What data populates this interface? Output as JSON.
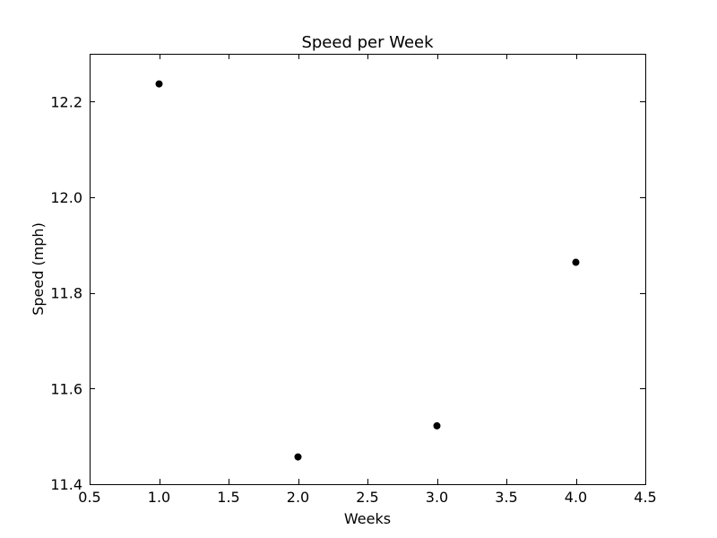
{
  "chart_data": {
    "type": "scatter",
    "title": "Speed per Week",
    "xlabel": "Weeks",
    "ylabel": "Speed (mph)",
    "xlim": [
      0.5,
      4.5
    ],
    "ylim": [
      11.4,
      12.3
    ],
    "x_ticks": [
      0.5,
      1.0,
      1.5,
      2.0,
      2.5,
      3.0,
      3.5,
      4.0,
      4.5
    ],
    "x_tick_labels": [
      "0.5",
      "1.0",
      "1.5",
      "2.0",
      "2.5",
      "3.0",
      "3.5",
      "4.0",
      "4.5"
    ],
    "y_ticks": [
      11.4,
      11.6,
      11.8,
      12.0,
      12.2
    ],
    "y_tick_labels": [
      "11.4",
      "11.6",
      "11.8",
      "12.0",
      "12.2"
    ],
    "grid": false,
    "legend": "none",
    "marker_color": "#000000",
    "points": [
      {
        "x": 1.0,
        "y": 12.237
      },
      {
        "x": 2.0,
        "y": 11.457
      },
      {
        "x": 3.0,
        "y": 11.522
      },
      {
        "x": 4.0,
        "y": 11.864
      }
    ]
  }
}
